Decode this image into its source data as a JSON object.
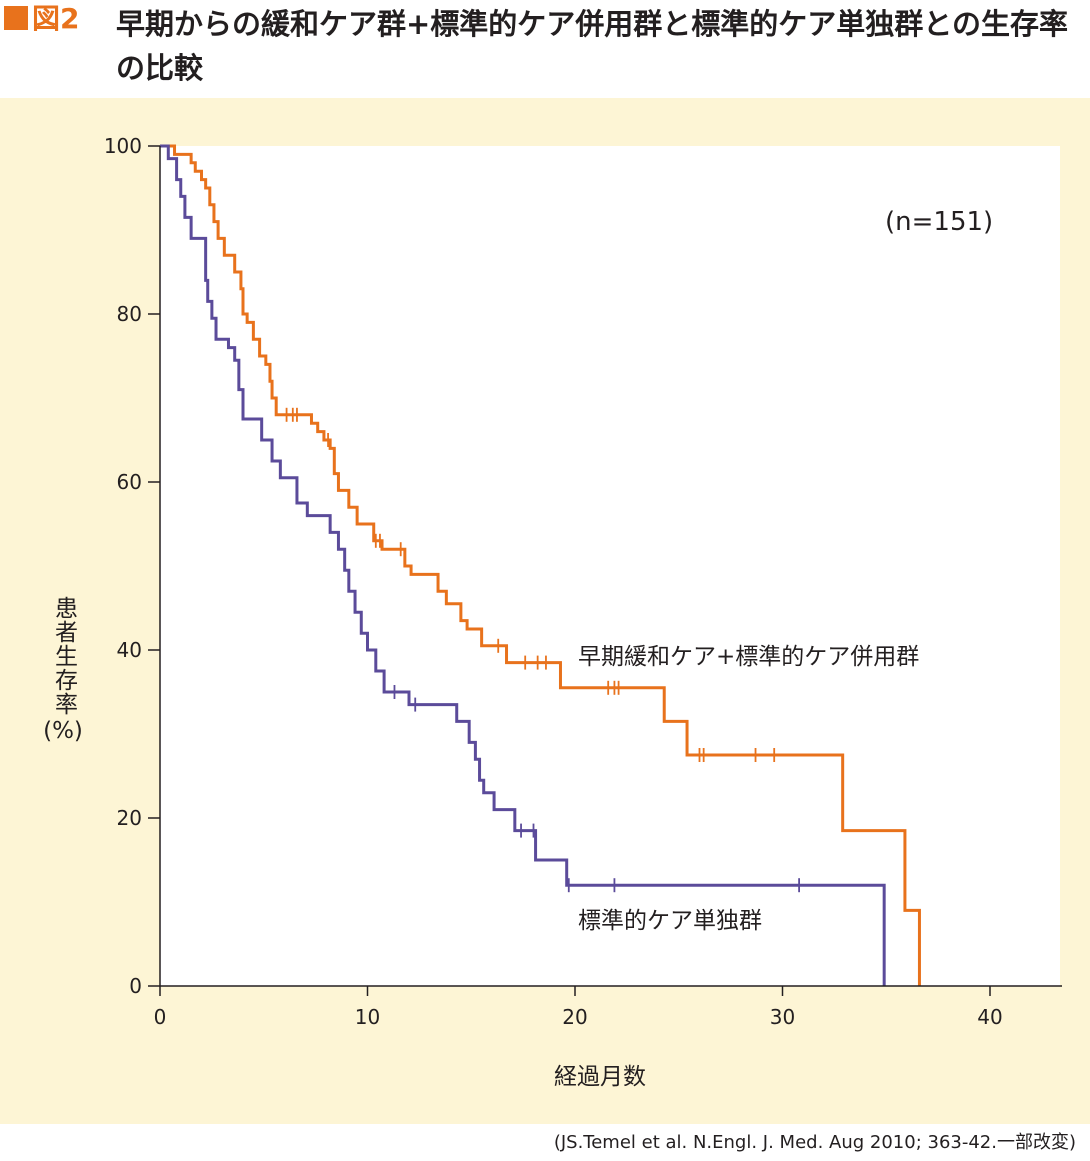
{
  "header": {
    "figure_label": "図2",
    "title": "早期からの緩和ケア群+標準的ケア併用群と標準的ケア単独群との生存率の比較",
    "accent_color": "#e8721c"
  },
  "chart_data": {
    "type": "line",
    "subtype": "kaplan-meier step plot",
    "annotation": "(n=151)",
    "xlabel": "経過月数",
    "ylabel": "患者生存率",
    "ylabel_unit": "(%)",
    "xlim": [
      0,
      43.5
    ],
    "ylim": [
      0,
      100
    ],
    "xticks": [
      0,
      10,
      20,
      30,
      40
    ],
    "yticks": [
      0,
      20,
      40,
      60,
      80,
      100
    ],
    "grid": false,
    "legend": "inline labels next to curves",
    "series": [
      {
        "name": "早期緩和ケア+標準的ケア併用群",
        "color": "#e8721c",
        "steps": [
          [
            0,
            100
          ],
          [
            0.7,
            99
          ],
          [
            1.5,
            98
          ],
          [
            1.7,
            97
          ],
          [
            2.0,
            96
          ],
          [
            2.2,
            95
          ],
          [
            2.4,
            93
          ],
          [
            2.6,
            91
          ],
          [
            2.8,
            89
          ],
          [
            3.1,
            87
          ],
          [
            3.6,
            85
          ],
          [
            3.9,
            83
          ],
          [
            4.0,
            80
          ],
          [
            4.2,
            79
          ],
          [
            4.5,
            77
          ],
          [
            4.8,
            75
          ],
          [
            5.1,
            74
          ],
          [
            5.3,
            72
          ],
          [
            5.4,
            70
          ],
          [
            5.6,
            68
          ],
          [
            7.3,
            67
          ],
          [
            7.6,
            66
          ],
          [
            7.9,
            65
          ],
          [
            8.2,
            64
          ],
          [
            8.4,
            61
          ],
          [
            8.6,
            59
          ],
          [
            9.1,
            57
          ],
          [
            9.5,
            55
          ],
          [
            10.3,
            53
          ],
          [
            10.7,
            52
          ],
          [
            11.8,
            50
          ],
          [
            12.1,
            49
          ],
          [
            13.4,
            47
          ],
          [
            13.8,
            45.5
          ],
          [
            14.5,
            43.5
          ],
          [
            14.8,
            42.5
          ],
          [
            15.5,
            40.5
          ],
          [
            16.7,
            38.5
          ],
          [
            19.3,
            35.5
          ],
          [
            24.3,
            31.5
          ],
          [
            25.4,
            27.5
          ],
          [
            32.9,
            18.5
          ],
          [
            35.9,
            9
          ],
          [
            36.6,
            0
          ]
        ],
        "censor_x": [
          6.1,
          6.4,
          6.6,
          8.1,
          10.4,
          10.6,
          11.6,
          16.3,
          17.6,
          18.2,
          18.6,
          21.6,
          21.9,
          22.1,
          26.0,
          26.2,
          28.7,
          29.6
        ],
        "label": "早期緩和ケア+標準的ケア併用群"
      },
      {
        "name": "標準的ケア単独群",
        "color": "#5b4b9a",
        "steps": [
          [
            0,
            100
          ],
          [
            0.4,
            98.5
          ],
          [
            0.8,
            96
          ],
          [
            1.0,
            94
          ],
          [
            1.2,
            91.5
          ],
          [
            1.5,
            89
          ],
          [
            2.2,
            84
          ],
          [
            2.3,
            81.5
          ],
          [
            2.5,
            79.5
          ],
          [
            2.7,
            77
          ],
          [
            3.3,
            76
          ],
          [
            3.6,
            74.5
          ],
          [
            3.8,
            71
          ],
          [
            4.0,
            67.5
          ],
          [
            4.9,
            65
          ],
          [
            5.4,
            62.5
          ],
          [
            5.8,
            60.5
          ],
          [
            6.6,
            57.5
          ],
          [
            7.1,
            56
          ],
          [
            8.2,
            54
          ],
          [
            8.6,
            52
          ],
          [
            8.9,
            49.5
          ],
          [
            9.1,
            47
          ],
          [
            9.4,
            44.5
          ],
          [
            9.7,
            42
          ],
          [
            10.0,
            40
          ],
          [
            10.4,
            37.5
          ],
          [
            10.8,
            35
          ],
          [
            12.0,
            33.5
          ],
          [
            14.3,
            31.5
          ],
          [
            14.9,
            29
          ],
          [
            15.2,
            27
          ],
          [
            15.4,
            24.5
          ],
          [
            15.6,
            23
          ],
          [
            16.1,
            21
          ],
          [
            17.1,
            18.5
          ],
          [
            18.1,
            15
          ],
          [
            19.6,
            12
          ],
          [
            34.9,
            0
          ]
        ],
        "censor_x": [
          11.3,
          12.3,
          17.4,
          18.0,
          19.7,
          21.9,
          30.8
        ],
        "label": "標準的ケア単独群"
      }
    ]
  },
  "source_note": "(JS.Temel et al. N.Engl. J. Med. Aug 2010; 363-42.一部改変)"
}
